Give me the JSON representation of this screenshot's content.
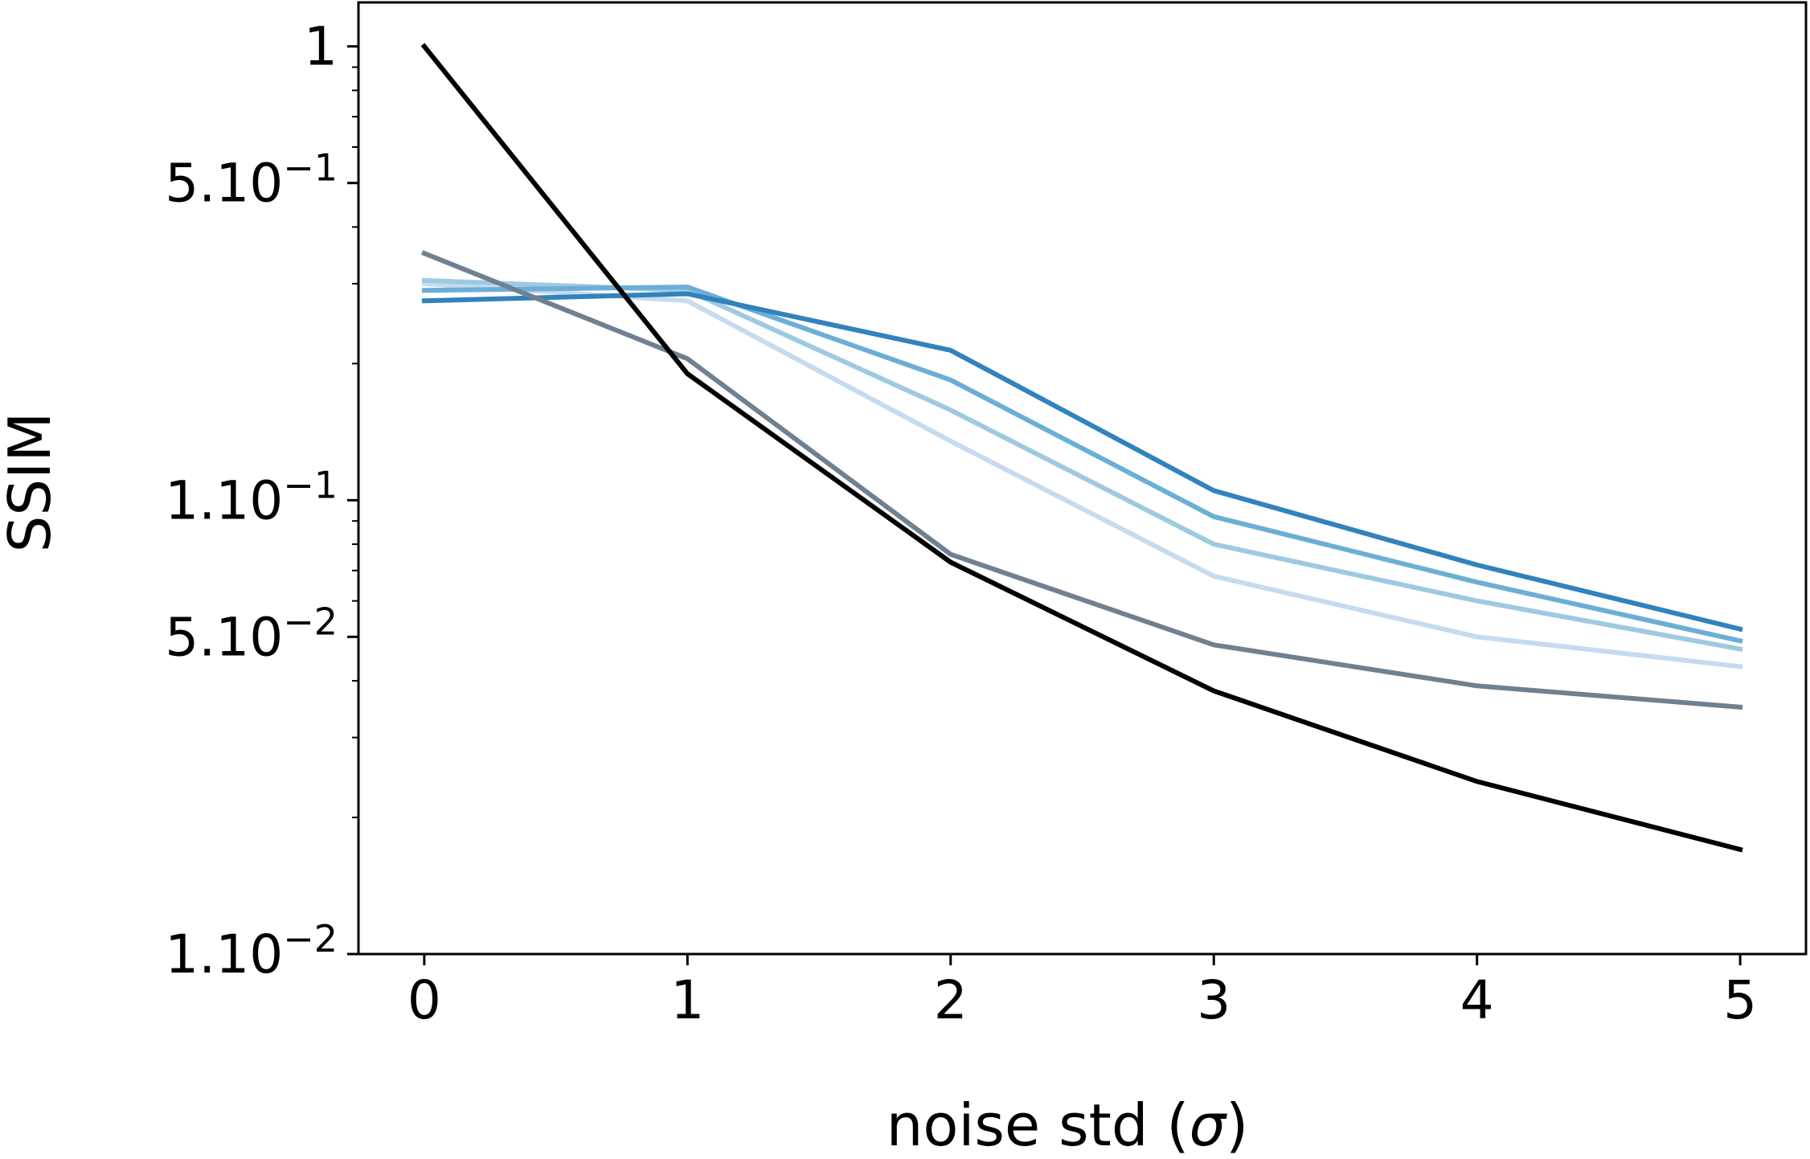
{
  "chart_data": {
    "type": "line",
    "xlabel_main": "noise std (",
    "xlabel_symbol": "σ",
    "xlabel_close": ")",
    "ylabel": "SSIM",
    "yscale": "log",
    "xlim": [
      -0.25,
      5.25
    ],
    "ylim": [
      0.01,
      1.25
    ],
    "grid": false,
    "legend": "none",
    "x_ticks": [
      "0",
      "1",
      "2",
      "3",
      "4",
      "5"
    ],
    "y_ticks": [
      {
        "value": 1,
        "base": "1",
        "exp": ""
      },
      {
        "value": 0.5,
        "base": "5.10",
        "exp": "−1"
      },
      {
        "value": 0.1,
        "base": "1.10",
        "exp": "−1"
      },
      {
        "value": 0.05,
        "base": "5.10",
        "exp": "−2"
      },
      {
        "value": 0.01,
        "base": "1.10",
        "exp": "−2"
      }
    ],
    "x": [
      0,
      1,
      2,
      3,
      4,
      5
    ],
    "series": [
      {
        "color": "#c6dbef",
        "values": [
          0.3,
          0.275,
          0.135,
          0.068,
          0.05,
          0.043
        ]
      },
      {
        "color": "#9ecae1",
        "values": [
          0.305,
          0.29,
          0.158,
          0.08,
          0.06,
          0.047
        ]
      },
      {
        "color": "#6baed6",
        "values": [
          0.29,
          0.295,
          0.184,
          0.092,
          0.066,
          0.049
        ]
      },
      {
        "color": "#3182bd",
        "values": [
          0.275,
          0.285,
          0.214,
          0.105,
          0.072,
          0.052
        ]
      },
      {
        "color": "#708090",
        "values": [
          0.35,
          0.205,
          0.076,
          0.048,
          0.039,
          0.035
        ]
      },
      {
        "color": "#000000",
        "values": [
          1.0,
          0.19,
          0.073,
          0.038,
          0.024,
          0.017
        ]
      }
    ]
  }
}
